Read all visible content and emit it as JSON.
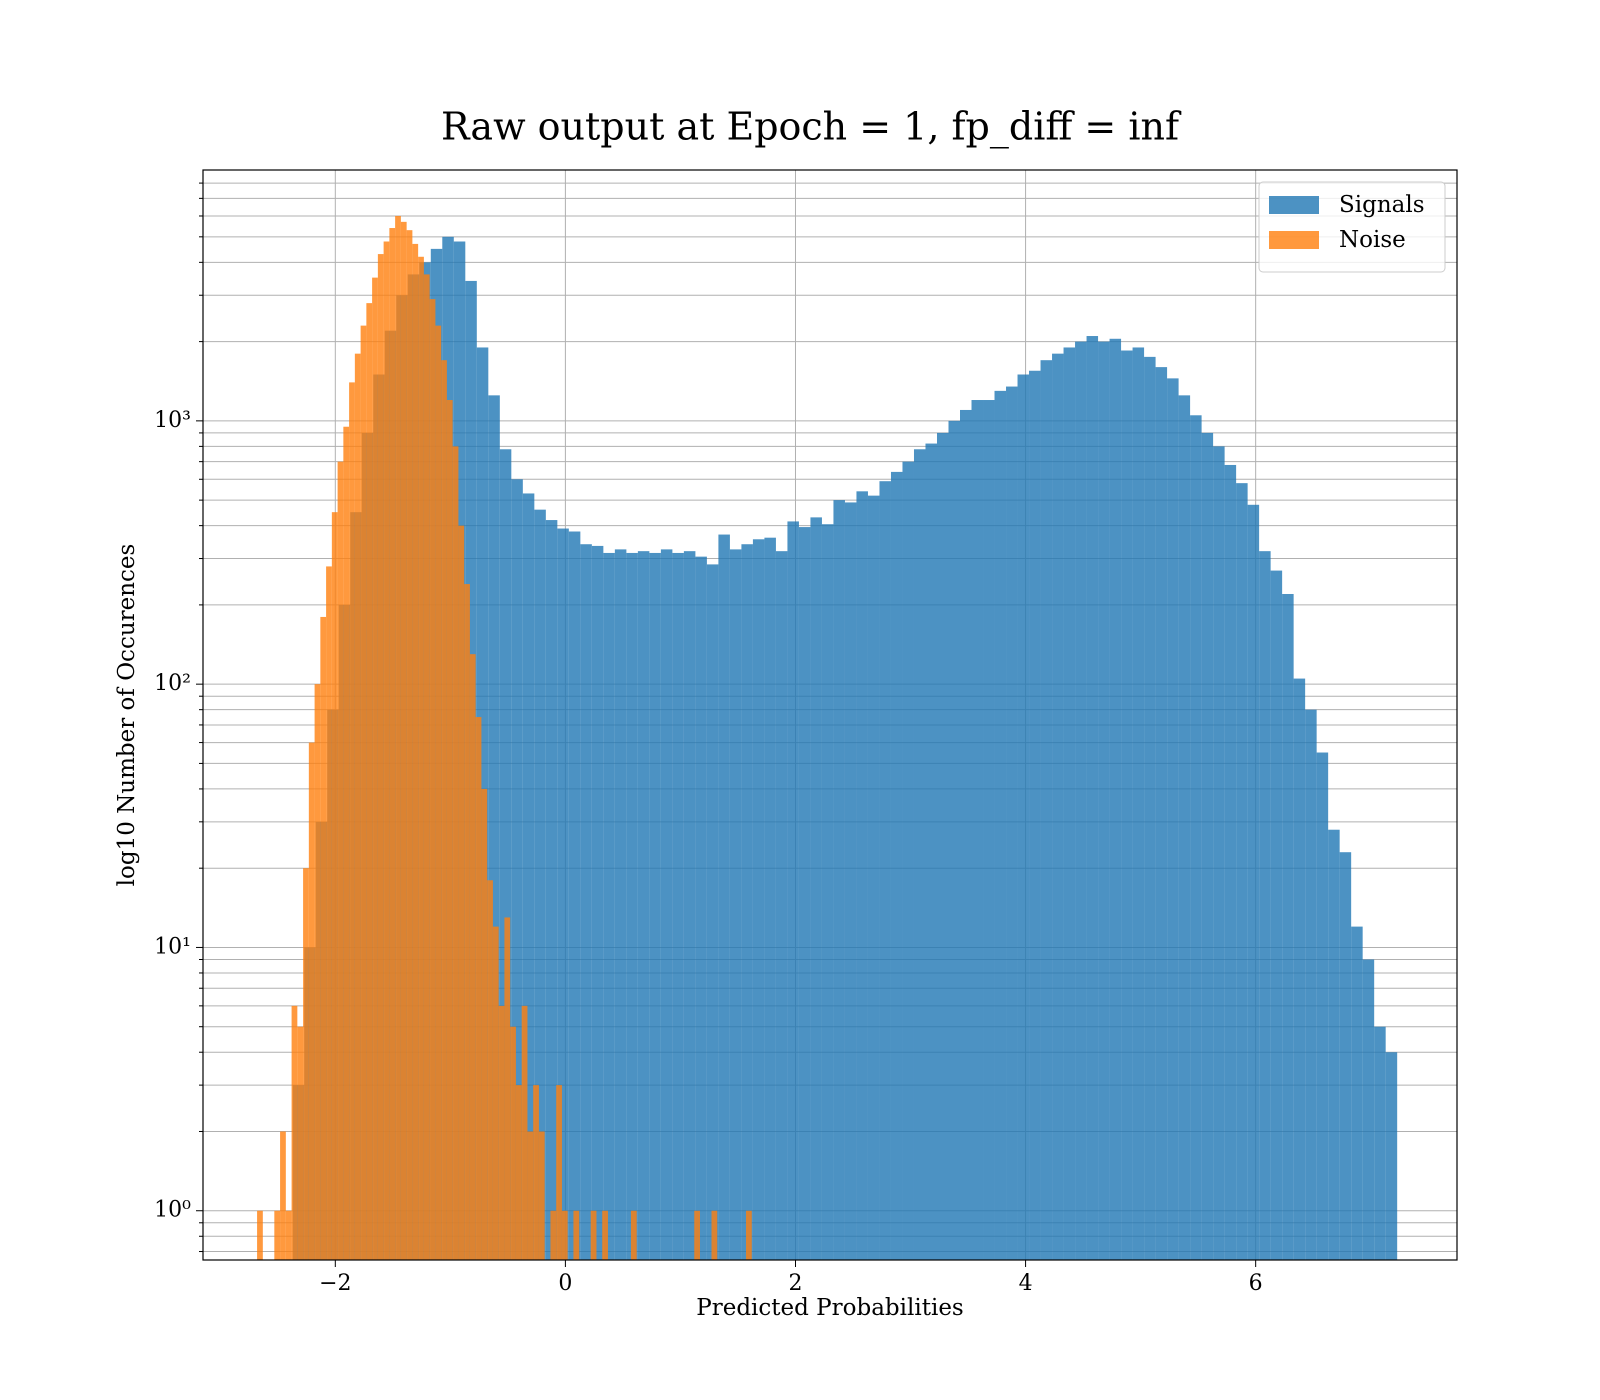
{
  "chart_data": {
    "type": "histogram",
    "title": "Raw output at Epoch = 1, fp_diff = inf",
    "x_label": "Predicted Probabilities",
    "y_label": "log10 Number of Occurences",
    "xlim": [
      -3.15,
      7.75
    ],
    "xticks": [
      {
        "value": -2,
        "label": "−2"
      },
      0,
      2,
      4,
      6
    ],
    "ylim": [
      0.65,
      8970
    ],
    "y_log": true,
    "yticks": [
      {
        "value": 1,
        "label": "10⁰"
      },
      {
        "value": 10,
        "label": "10¹"
      },
      {
        "value": 100,
        "label": "10²"
      },
      {
        "value": 1000,
        "label": "10³"
      }
    ],
    "yminorticks": [
      0.7,
      0.8,
      0.9,
      2,
      3,
      4,
      5,
      6,
      7,
      8,
      9,
      20,
      30,
      40,
      50,
      60,
      70,
      80,
      90,
      200,
      300,
      400,
      500,
      600,
      700,
      800,
      900,
      2000,
      3000,
      4000,
      5000,
      6000,
      7000,
      8000
    ],
    "grid": true,
    "legend_position": "upper right",
    "opacity": 0.8,
    "series": [
      {
        "name": "Signals",
        "color": "#1f77b4",
        "bins": [
          -2.37,
          -2.27,
          -2.17,
          -2.07,
          -1.97,
          -1.87,
          -1.77,
          -1.67,
          -1.57,
          -1.47,
          -1.37,
          -1.27,
          -1.17,
          -1.07,
          -0.97,
          -0.87,
          -0.77,
          -0.67,
          -0.57,
          -0.47,
          -0.37,
          -0.27,
          -0.17,
          -0.07,
          0.03,
          0.13,
          0.23,
          0.33,
          0.43,
          0.53,
          0.63,
          0.73,
          0.83,
          0.93,
          1.03,
          1.13,
          1.23,
          1.33,
          1.43,
          1.53,
          1.63,
          1.73,
          1.83,
          1.93,
          2.03,
          2.13,
          2.23,
          2.33,
          2.43,
          2.53,
          2.63,
          2.73,
          2.83,
          2.93,
          3.03,
          3.13,
          3.23,
          3.33,
          3.43,
          3.53,
          3.63,
          3.73,
          3.83,
          3.93,
          4.03,
          4.13,
          4.23,
          4.33,
          4.43,
          4.53,
          4.63,
          4.73,
          4.83,
          4.93,
          5.03,
          5.13,
          5.23,
          5.33,
          5.43,
          5.53,
          5.63,
          5.73,
          5.83,
          5.93,
          6.03,
          6.13,
          6.23,
          6.33,
          6.43,
          6.53,
          6.63,
          6.73,
          6.83,
          6.93,
          7.03,
          7.13,
          7.23
        ],
        "values": [
          3,
          10,
          30,
          80,
          200,
          450,
          900,
          1500,
          2200,
          3000,
          3600,
          4000,
          4500,
          5000,
          4800,
          3400,
          1900,
          1250,
          780,
          600,
          530,
          460,
          420,
          390,
          380,
          340,
          335,
          315,
          325,
          315,
          320,
          315,
          325,
          315,
          320,
          305,
          285,
          370,
          325,
          340,
          355,
          360,
          320,
          415,
          395,
          430,
          405,
          500,
          490,
          540,
          520,
          590,
          640,
          700,
          780,
          820,
          900,
          1000,
          1100,
          1200,
          1200,
          1300,
          1350,
          1500,
          1550,
          1700,
          1800,
          1900,
          2000,
          2100,
          2000,
          2050,
          1850,
          1900,
          1750,
          1600,
          1450,
          1250,
          1050,
          900,
          800,
          680,
          580,
          480,
          320,
          270,
          220,
          105,
          80,
          55,
          28,
          23,
          12,
          9,
          5,
          4
        ]
      },
      {
        "name": "Noise",
        "color": "#ff7f0e",
        "bins": [
          -2.68,
          -2.63,
          -2.58,
          -2.53,
          -2.48,
          -2.43,
          -2.38,
          -2.33,
          -2.28,
          -2.23,
          -2.18,
          -2.13,
          -2.08,
          -2.03,
          -1.98,
          -1.93,
          -1.88,
          -1.83,
          -1.78,
          -1.73,
          -1.68,
          -1.63,
          -1.58,
          -1.53,
          -1.48,
          -1.43,
          -1.38,
          -1.33,
          -1.28,
          -1.23,
          -1.18,
          -1.13,
          -1.08,
          -1.03,
          -0.98,
          -0.93,
          -0.88,
          -0.83,
          -0.78,
          -0.73,
          -0.68,
          -0.63,
          -0.58,
          -0.53,
          -0.48,
          -0.43,
          -0.38,
          -0.33,
          -0.28,
          -0.23,
          -0.18,
          -0.13,
          -0.08,
          -0.03,
          0.02,
          0.07,
          0.12,
          0.17,
          0.22,
          0.27,
          0.32,
          0.37,
          0.42,
          0.47,
          0.52,
          0.57,
          0.62,
          0.67,
          0.72,
          0.77,
          0.82,
          0.87,
          0.92,
          0.97,
          1.02,
          1.07,
          1.12,
          1.17,
          1.22,
          1.27,
          1.32,
          1.37,
          1.42,
          1.47,
          1.52,
          1.57,
          1.62
        ],
        "values": [
          1,
          0,
          0,
          1,
          2,
          1,
          6,
          5,
          20,
          60,
          100,
          180,
          280,
          450,
          700,
          950,
          1400,
          1800,
          2300,
          2800,
          3500,
          4300,
          4800,
          5400,
          6000,
          5700,
          5300,
          4700,
          4200,
          3600,
          2900,
          2300,
          1700,
          1200,
          800,
          400,
          240,
          130,
          75,
          40,
          18,
          12,
          6,
          13,
          5,
          3,
          6,
          2,
          3,
          2,
          0,
          1,
          3,
          1,
          0,
          1,
          0,
          0,
          1,
          0,
          1,
          0,
          0,
          0,
          0,
          1,
          0,
          0,
          0,
          0,
          0,
          0,
          0,
          0,
          0,
          0,
          1,
          0,
          0,
          1,
          0,
          0,
          0,
          0,
          0,
          1
        ]
      }
    ]
  }
}
